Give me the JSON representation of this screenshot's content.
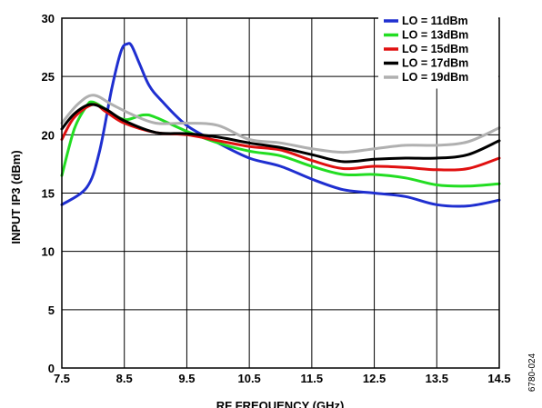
{
  "figure_id": "6780-024",
  "chart_data": {
    "type": "line",
    "xlabel": "RF FREQUENCY (GHz)",
    "ylabel": "INPUT IP3 (dBm)",
    "xlim": [
      7.5,
      14.5
    ],
    "ylim": [
      0,
      30
    ],
    "xticks": [
      7.5,
      8.5,
      9.5,
      10.5,
      11.5,
      12.5,
      13.5,
      14.5
    ],
    "xtick_labels": [
      "7.5",
      "8.5",
      "9.5",
      "10.5",
      "11.5",
      "12.5",
      "13.5",
      "14.5"
    ],
    "yticks": [
      0,
      5,
      10,
      15,
      20,
      25,
      30
    ],
    "ytick_labels": [
      "0",
      "5",
      "10",
      "15",
      "20",
      "25",
      "30"
    ],
    "grid": true,
    "legend_position": "top-right",
    "series": [
      {
        "name": "LO = 11dBm",
        "color": "#1f2fd0",
        "x": [
          7.5,
          7.9,
          8.1,
          8.3,
          8.45,
          8.55,
          8.62,
          8.75,
          8.9,
          9.1,
          9.5,
          10.0,
          10.5,
          11.0,
          11.5,
          12.0,
          12.5,
          13.0,
          13.5,
          14.0,
          14.5
        ],
        "y": [
          14.0,
          15.5,
          18.5,
          24.0,
          27.2,
          27.8,
          27.6,
          26.0,
          24.2,
          22.9,
          20.8,
          19.3,
          18.0,
          17.3,
          16.2,
          15.3,
          15.0,
          14.7,
          14.0,
          13.9,
          14.4
        ]
      },
      {
        "name": "LO = 13dBm",
        "color": "#22dd22",
        "x": [
          7.5,
          7.7,
          7.9,
          8.0,
          8.2,
          8.5,
          8.8,
          9.0,
          9.5,
          10.0,
          10.5,
          11.0,
          11.5,
          12.0,
          12.5,
          13.0,
          13.5,
          14.0,
          14.5
        ],
        "y": [
          16.5,
          20.5,
          22.5,
          22.8,
          22.2,
          21.3,
          21.7,
          21.5,
          20.3,
          19.3,
          18.6,
          18.2,
          17.3,
          16.6,
          16.6,
          16.3,
          15.7,
          15.6,
          15.8
        ]
      },
      {
        "name": "LO = 15dBm",
        "color": "#e01010",
        "x": [
          7.5,
          7.7,
          8.0,
          8.2,
          8.5,
          9.0,
          9.5,
          10.0,
          10.5,
          11.0,
          11.5,
          12.0,
          12.5,
          13.0,
          13.5,
          14.0,
          14.5
        ],
        "y": [
          19.6,
          21.5,
          22.6,
          22.0,
          21.0,
          20.2,
          20.0,
          19.5,
          19.0,
          18.7,
          17.8,
          17.1,
          17.3,
          17.2,
          17.0,
          17.1,
          18.0
        ]
      },
      {
        "name": "LO = 17dBm",
        "color": "#000000",
        "x": [
          7.5,
          7.7,
          7.95,
          8.2,
          8.5,
          9.0,
          9.5,
          10.0,
          10.5,
          11.0,
          11.5,
          12.0,
          12.5,
          13.0,
          13.5,
          14.0,
          14.5
        ],
        "y": [
          20.5,
          21.8,
          22.6,
          22.2,
          21.2,
          20.2,
          20.1,
          19.8,
          19.3,
          18.9,
          18.3,
          17.7,
          17.9,
          18.0,
          18.0,
          18.3,
          19.5
        ]
      },
      {
        "name": "LO = 19dBm",
        "color": "#b0b0b0",
        "x": [
          7.5,
          7.75,
          8.0,
          8.3,
          8.6,
          9.0,
          9.5,
          10.0,
          10.5,
          11.0,
          11.5,
          12.0,
          12.5,
          13.0,
          13.5,
          14.0,
          14.5
        ],
        "y": [
          21.0,
          22.6,
          23.4,
          22.6,
          21.8,
          21.0,
          21.0,
          20.8,
          19.6,
          19.3,
          18.8,
          18.5,
          18.8,
          19.1,
          19.1,
          19.4,
          20.6
        ]
      }
    ]
  }
}
